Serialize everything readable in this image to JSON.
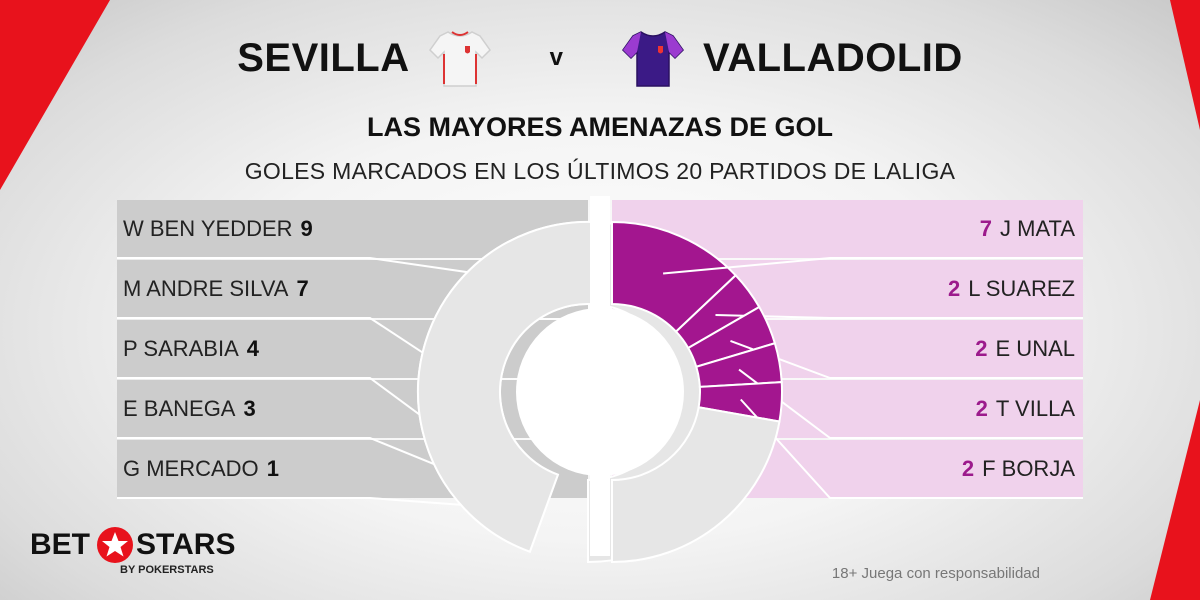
{
  "header": {
    "home_team": "SEVILLA",
    "versus": "v",
    "away_team": "VALLADOLID"
  },
  "title": "LAS MAYORES AMENAZAS DE GOL",
  "subtitle": "GOLES MARCADOS EN LOS ÚLTIMOS 20 PARTIDOS DE LALIGA",
  "colors": {
    "home_accent": "#000000",
    "away_accent": "#a3168f",
    "home_panel": "#cccccc",
    "away_panel": "#f0d2ec",
    "brand_red": "#e8121c"
  },
  "chart_data": {
    "type": "pie",
    "series": [
      {
        "name": "SEVILLA",
        "categories": [
          "W BEN YEDDER",
          "M ANDRE SILVA",
          "P SARABIA",
          "E BANEGA",
          "G MERCADO"
        ],
        "values": [
          9,
          7,
          4,
          3,
          1
        ]
      },
      {
        "name": "VALLADOLID",
        "categories": [
          "J MATA",
          "L SUAREZ",
          "E UNAL",
          "T VILLA",
          "F BORJA"
        ],
        "values": [
          7,
          2,
          2,
          2,
          2
        ]
      }
    ]
  },
  "brand": {
    "left_word": "BET",
    "right_word": "STARS",
    "sub": "BY POKERSTARS"
  },
  "footer": {
    "responsible": "18+ Juega con responsabilidad"
  }
}
